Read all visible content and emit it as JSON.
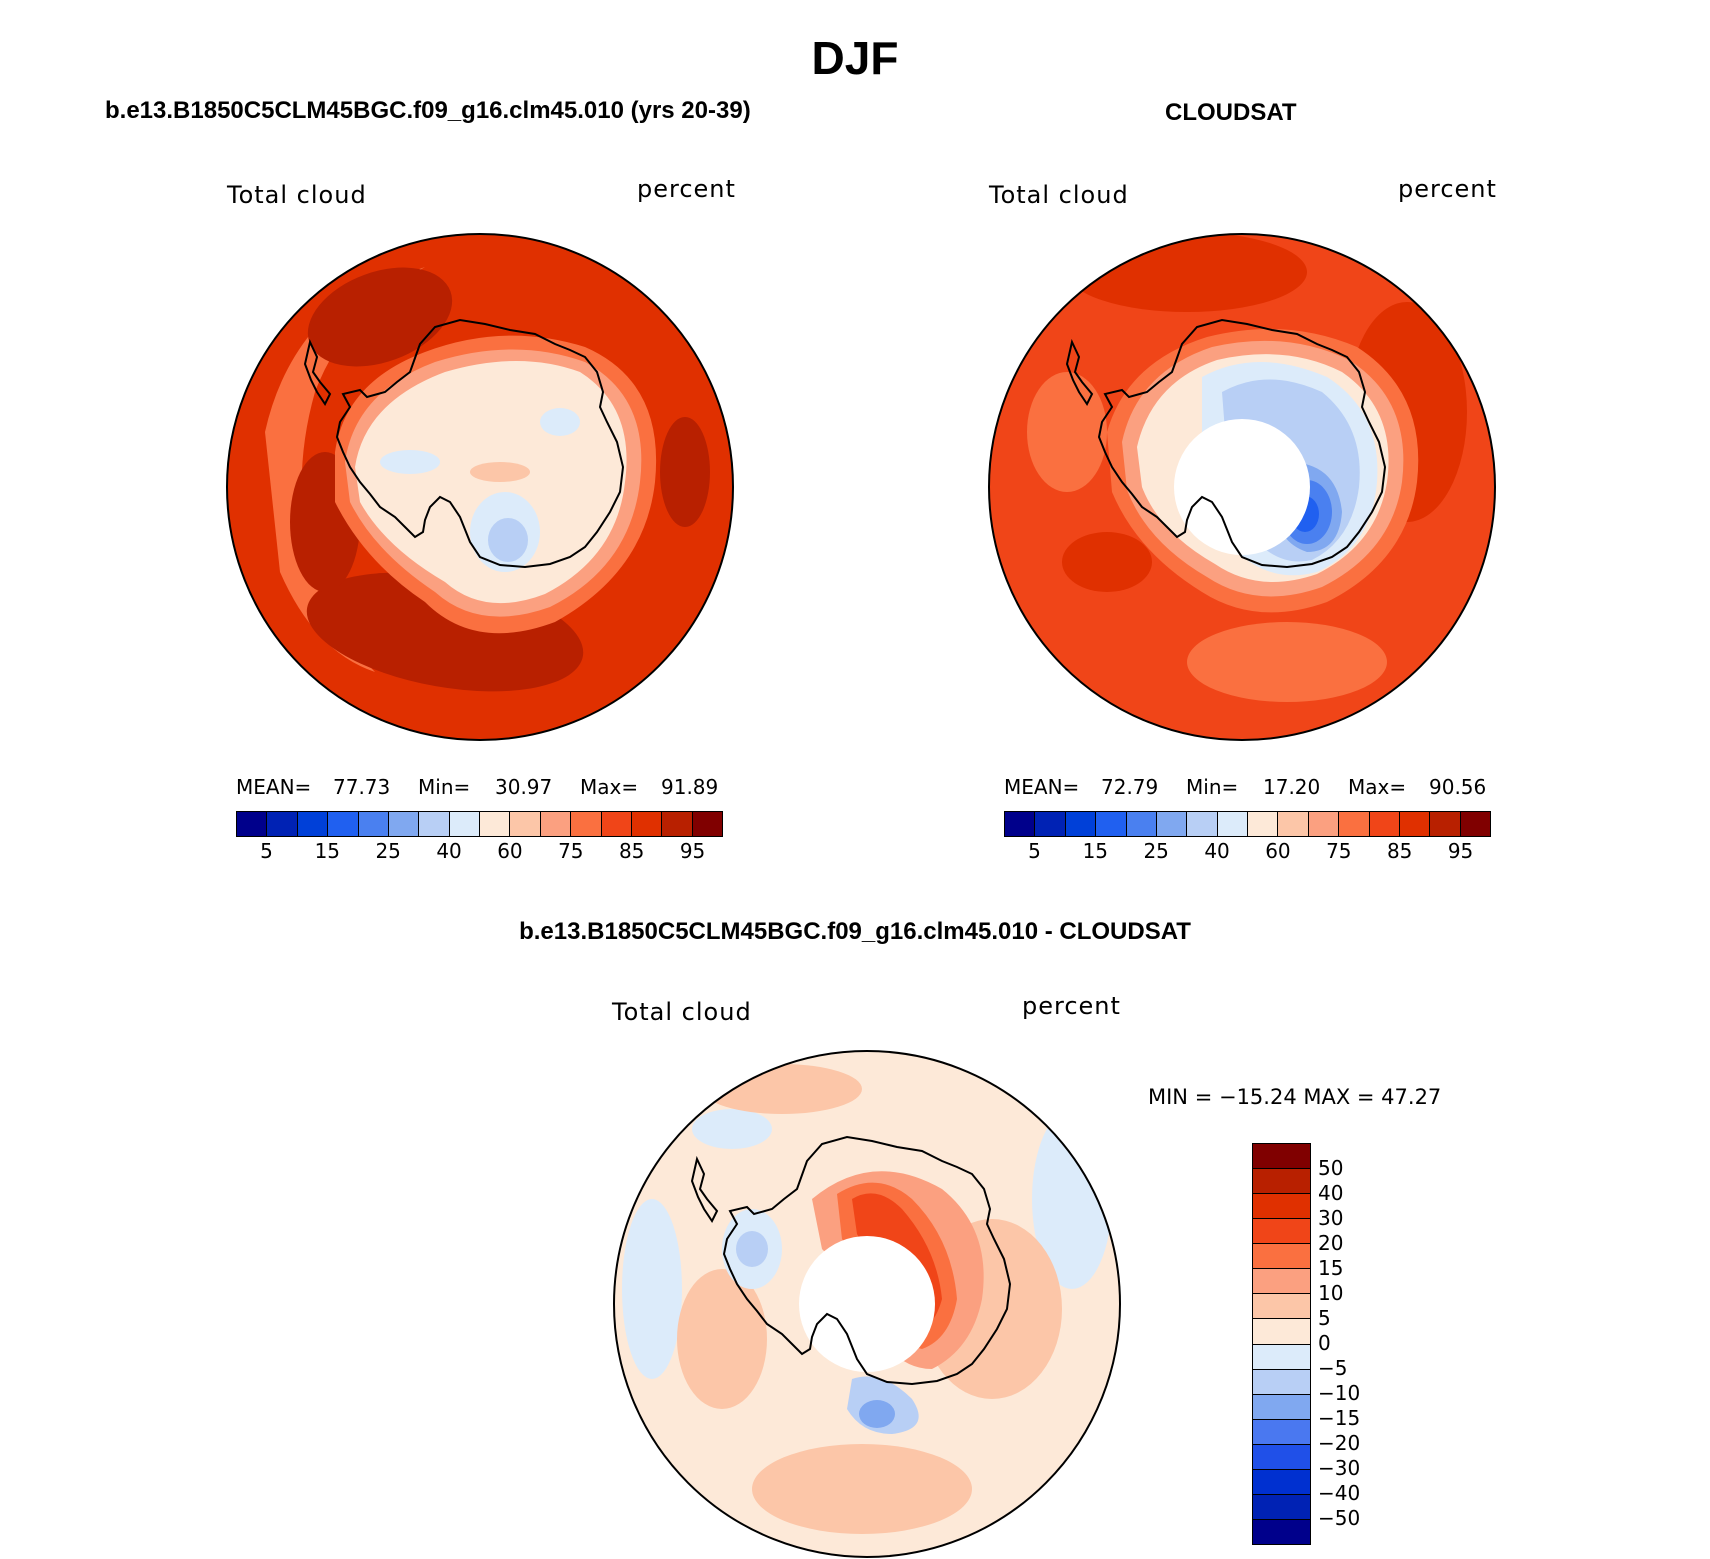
{
  "figure": {
    "season": "DJF"
  },
  "panels": [
    {
      "title": "b.e13.B1850C5CLM45BGC.f09_g16.clm45.010 (yrs 20-39)",
      "variable": "Total cloud",
      "units": "percent",
      "stats": {
        "mean_label": "MEAN=",
        "mean": "77.73",
        "min_label": "Min=",
        "min": "30.97",
        "max_label": "Max=",
        "max": "91.89"
      }
    },
    {
      "title": "CLOUDSAT",
      "variable": "Total cloud",
      "units": "percent",
      "stats": {
        "mean_label": "MEAN=",
        "mean": "72.79",
        "min_label": "Min=",
        "min": "17.20",
        "max_label": "Max=",
        "max": "90.56"
      }
    },
    {
      "title": "b.e13.B1850C5CLM45BGC.f09_g16.clm45.010 - CLOUDSAT",
      "variable": "Total cloud",
      "units": "percent",
      "stats": {
        "text": "MIN = −15.24 MAX =  47.27"
      }
    }
  ],
  "colorbars": {
    "absolute": {
      "colors": [
        "#00008b",
        "#0022b4",
        "#0040d8",
        "#2060f0",
        "#4a80f0",
        "#80a8f0",
        "#b8cff5",
        "#dcebfa",
        "#fde9d8",
        "#fcc6a8",
        "#fba080",
        "#fa7040",
        "#f04518",
        "#e03000",
        "#b82000",
        "#800000"
      ],
      "tick_labels": [
        "5",
        "15",
        "25",
        "40",
        "60",
        "75",
        "85",
        "95"
      ]
    },
    "difference": {
      "colors": [
        "#00008b",
        "#0022b4",
        "#0030d0",
        "#2050e8",
        "#4a78f0",
        "#80a8f0",
        "#b8cff5",
        "#dcebfa",
        "#fde9d8",
        "#fcc6a8",
        "#fba080",
        "#fa7040",
        "#f04518",
        "#e03000",
        "#b82000",
        "#800000"
      ],
      "tick_labels": [
        "−50",
        "−40",
        "−30",
        "−20",
        "−15",
        "−10",
        "−5",
        "0",
        "5",
        "10",
        "15",
        "20",
        "30",
        "40",
        "50"
      ]
    }
  },
  "map_colors": {
    "land_outline": "#000000",
    "missing_data": "#ffffff"
  }
}
